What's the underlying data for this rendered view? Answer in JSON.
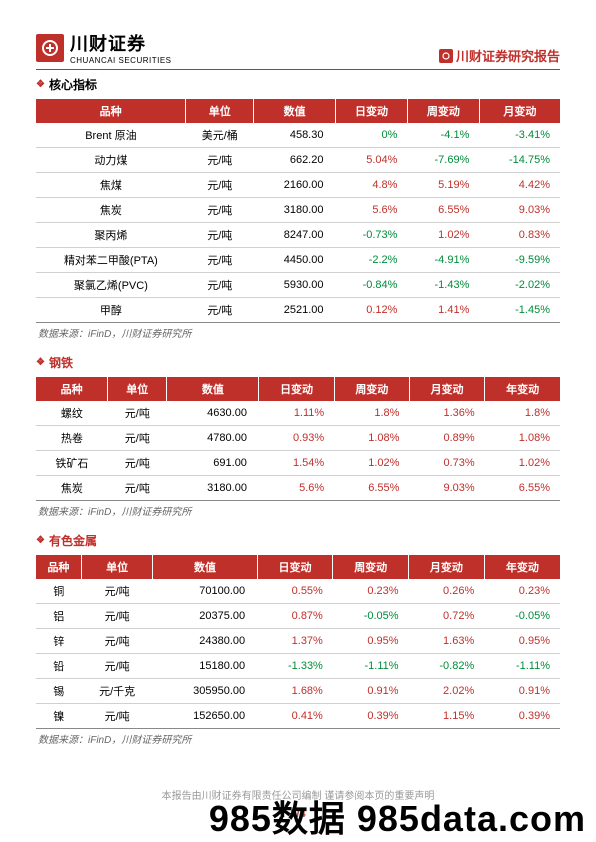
{
  "header": {
    "logo_cn": "川财证券",
    "logo_en": "CHUANCAI SECURITIES",
    "report_title": "川财证券研究报告"
  },
  "sections": [
    {
      "title": "核心指标",
      "columns": [
        "品种",
        "单位",
        "数值",
        "日变动",
        "周变动",
        "月变动"
      ],
      "rows": [
        {
          "name": "Brent 原油",
          "unit": "美元/桶",
          "value": "458.30",
          "d": "0%",
          "w": "-4.1%",
          "m": "-3.41%"
        },
        {
          "name": "动力煤",
          "unit": "元/吨",
          "value": "662.20",
          "d": "5.04%",
          "w": "-7.69%",
          "m": "-14.75%"
        },
        {
          "name": "焦煤",
          "unit": "元/吨",
          "value": "2160.00",
          "d": "4.8%",
          "w": "5.19%",
          "m": "4.42%"
        },
        {
          "name": "焦炭",
          "unit": "元/吨",
          "value": "3180.00",
          "d": "5.6%",
          "w": "6.55%",
          "m": "9.03%"
        },
        {
          "name": "聚丙烯",
          "unit": "元/吨",
          "value": "8247.00",
          "d": "-0.73%",
          "w": "1.02%",
          "m": "0.83%"
        },
        {
          "name": "精对苯二甲酸(PTA)",
          "unit": "元/吨",
          "value": "4450.00",
          "d": "-2.2%",
          "w": "-4.91%",
          "m": "-9.59%"
        },
        {
          "name": "聚氯乙烯(PVC)",
          "unit": "元/吨",
          "value": "5930.00",
          "d": "-0.84%",
          "w": "-1.43%",
          "m": "-2.02%"
        },
        {
          "name": "甲醇",
          "unit": "元/吨",
          "value": "2521.00",
          "d": "0.12%",
          "w": "1.41%",
          "m": "-1.45%"
        }
      ],
      "source": "数据来源：iFinD，川财证券研究所"
    },
    {
      "title": "钢铁",
      "columns": [
        "品种",
        "单位",
        "数值",
        "日变动",
        "周变动",
        "月变动",
        "年变动"
      ],
      "rows": [
        {
          "name": "螺纹",
          "unit": "元/吨",
          "value": "4630.00",
          "d": "1.11%",
          "w": "1.8%",
          "m": "1.36%",
          "y": "1.8%"
        },
        {
          "name": "热卷",
          "unit": "元/吨",
          "value": "4780.00",
          "d": "0.93%",
          "w": "1.08%",
          "m": "0.89%",
          "y": "1.08%"
        },
        {
          "name": "铁矿石",
          "unit": "元/吨",
          "value": "691.00",
          "d": "1.54%",
          "w": "1.02%",
          "m": "0.73%",
          "y": "1.02%"
        },
        {
          "name": "焦炭",
          "unit": "元/吨",
          "value": "3180.00",
          "d": "5.6%",
          "w": "6.55%",
          "m": "9.03%",
          "y": "6.55%"
        }
      ],
      "source": "数据来源：iFinD，川财证券研究所"
    },
    {
      "title": "有色金属",
      "columns": [
        "品种",
        "单位",
        "数值",
        "日变动",
        "周变动",
        "月变动",
        "年变动"
      ],
      "rows": [
        {
          "name": "铜",
          "unit": "元/吨",
          "value": "70100.00",
          "d": "0.55%",
          "w": "0.23%",
          "m": "0.26%",
          "y": "0.23%"
        },
        {
          "name": "铝",
          "unit": "元/吨",
          "value": "20375.00",
          "d": "0.87%",
          "w": "-0.05%",
          "m": "0.72%",
          "y": "-0.05%"
        },
        {
          "name": "锌",
          "unit": "元/吨",
          "value": "24380.00",
          "d": "1.37%",
          "w": "0.95%",
          "m": "1.63%",
          "y": "0.95%"
        },
        {
          "name": "铅",
          "unit": "元/吨",
          "value": "15180.00",
          "d": "-1.33%",
          "w": "-1.11%",
          "m": "-0.82%",
          "y": "-1.11%"
        },
        {
          "name": "锡",
          "unit": "元/千克",
          "value": "305950.00",
          "d": "1.68%",
          "w": "0.91%",
          "m": "2.02%",
          "y": "0.91%"
        },
        {
          "name": "镍",
          "unit": "元/吨",
          "value": "152650.00",
          "d": "0.41%",
          "w": "0.39%",
          "m": "1.15%",
          "y": "0.39%"
        }
      ],
      "source": "数据来源：iFinD，川财证券研究所"
    }
  ],
  "colors": {
    "pos": "#c0302b",
    "neg": "#008c3a",
    "neutral": "#008c3a"
  },
  "footer": {
    "disclaimer": "本报告由川财证券有限责任公司编制 谨请参阅本页的重要声明",
    "page": "2/4",
    "watermark": "985数据 985data.com"
  }
}
